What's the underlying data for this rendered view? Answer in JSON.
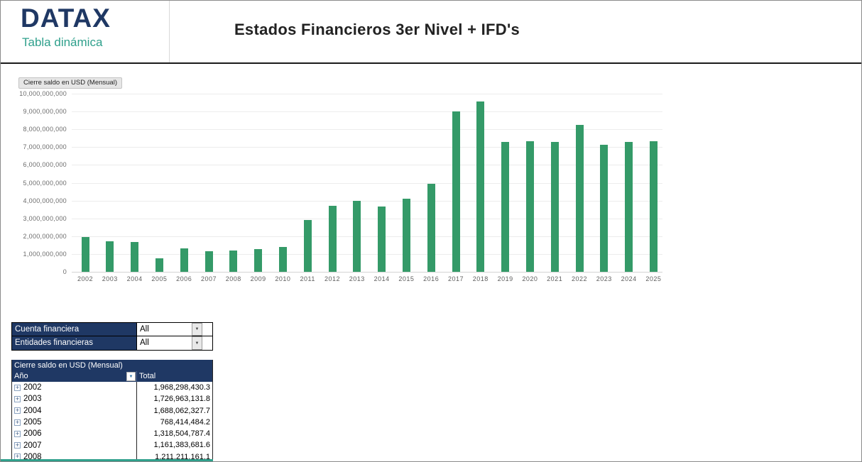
{
  "header": {
    "logo_text": "DATAX",
    "logo_subtitle": "Tabla dinámica",
    "title": "Estados Financieros 3er Nivel + IFD's"
  },
  "chart": {
    "field_button_label": "Cierre saldo en USD (Mensual)"
  },
  "chart_data": {
    "type": "bar",
    "title": "Cierre saldo en USD (Mensual)",
    "categories": [
      "2002",
      "2003",
      "2004",
      "2005",
      "2006",
      "2007",
      "2008",
      "2009",
      "2010",
      "2011",
      "2012",
      "2013",
      "2014",
      "2015",
      "2016",
      "2017",
      "2018",
      "2019",
      "2020",
      "2021",
      "2022",
      "2023",
      "2024",
      "2025"
    ],
    "values": [
      1968298430.3,
      1726963131.8,
      1688062327.7,
      768414484.2,
      1318504787.4,
      1161383681.6,
      1211211161.1,
      1260000000,
      1410000000,
      2890000000,
      3700000000,
      3980000000,
      3680000000,
      4100000000,
      4950000000,
      9000000000,
      9550000000,
      7300000000,
      7350000000,
      7300000000,
      8250000000,
      7150000000,
      7300000000,
      7350000000
    ],
    "xlabel": "",
    "ylabel": "",
    "ylim": [
      0,
      10000000000
    ],
    "ytick_step": 1000000000,
    "grid": true,
    "legend": "none",
    "bar_color": "#349a68"
  },
  "filters": [
    {
      "label": "Cuenta financiera",
      "value": "All"
    },
    {
      "label": "Entidades financieras",
      "value": "All"
    }
  ],
  "pivot": {
    "title": "Cierre saldo en USD (Mensual)",
    "row_header": "Año",
    "value_header": "Total",
    "rows": [
      {
        "year": "2002",
        "total": "1,968,298,430.3"
      },
      {
        "year": "2003",
        "total": "1,726,963,131.8"
      },
      {
        "year": "2004",
        "total": "1,688,062,327.7"
      },
      {
        "year": "2005",
        "total": "768,414,484.2"
      },
      {
        "year": "2006",
        "total": "1,318,504,787.4"
      },
      {
        "year": "2007",
        "total": "1,161,383,681.6"
      },
      {
        "year": "2008",
        "total": "1,211,211,161.1"
      }
    ]
  },
  "colors": {
    "navy": "#1f3864",
    "teal": "#2fa08c",
    "bar_green": "#349a68",
    "title_text": "#222222"
  }
}
